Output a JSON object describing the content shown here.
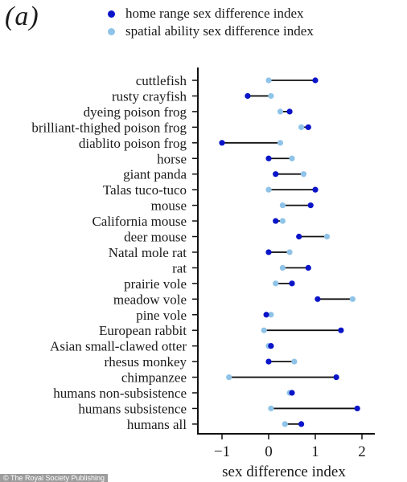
{
  "panel_label": "(a)",
  "colors": {
    "home": "#0a14c8",
    "spatial": "#8fc3e8",
    "axis": "#111111"
  },
  "legend": [
    {
      "label": "home range sex difference index",
      "color_key": "home"
    },
    {
      "label": "spatial ability sex difference index",
      "color_key": "spatial"
    }
  ],
  "chart_data": {
    "type": "dot",
    "xlabel": "sex difference index",
    "xlim": [
      -1.5,
      2.05
    ],
    "xticks": [
      -1,
      0,
      1,
      2
    ],
    "tick_labels": [
      "−1",
      "0",
      "1",
      "2"
    ],
    "grid": false,
    "legend_position": "top",
    "series": [
      {
        "name": "home range sex difference index",
        "color_key": "home"
      },
      {
        "name": "spatial ability sex difference index",
        "color_key": "spatial"
      }
    ],
    "categories": [
      {
        "label": "cuttlefish",
        "home": 1.0,
        "spatial": 0.0
      },
      {
        "label": "rusty crayfish",
        "home": -0.45,
        "spatial": 0.05
      },
      {
        "label": "dyeing poison frog",
        "home": 0.45,
        "spatial": 0.25
      },
      {
        "label": "brilliant-thighed poison frog",
        "home": 0.85,
        "spatial": 0.7
      },
      {
        "label": "diablito poison frog",
        "home": -1.0,
        "spatial": 0.25
      },
      {
        "label": "horse",
        "home": 0.0,
        "spatial": 0.5
      },
      {
        "label": "giant panda",
        "home": 0.15,
        "spatial": 0.75
      },
      {
        "label": "Talas tuco-tuco",
        "home": 1.0,
        "spatial": 0.0
      },
      {
        "label": "mouse",
        "home": 0.9,
        "spatial": 0.3
      },
      {
        "label": "California mouse",
        "home": 0.15,
        "spatial": 0.3
      },
      {
        "label": "deer mouse",
        "home": 0.65,
        "spatial": 1.25
      },
      {
        "label": "Natal mole rat",
        "home": 0.0,
        "spatial": 0.45
      },
      {
        "label": "rat",
        "home": 0.85,
        "spatial": 0.3
      },
      {
        "label": "prairie vole",
        "home": 0.5,
        "spatial": 0.15
      },
      {
        "label": "meadow vole",
        "home": 1.05,
        "spatial": 1.8
      },
      {
        "label": "pine vole",
        "home": -0.05,
        "spatial": 0.05
      },
      {
        "label": "European rabbit",
        "home": 1.55,
        "spatial": -0.1
      },
      {
        "label": "Asian small-clawed otter",
        "home": 0.05,
        "spatial": 0.0
      },
      {
        "label": "rhesus monkey",
        "home": 0.0,
        "spatial": 0.55
      },
      {
        "label": "chimpanzee",
        "home": 1.45,
        "spatial": -0.85
      },
      {
        "label": "humans non-subsistence",
        "home": 0.5,
        "spatial": 0.45
      },
      {
        "label": "humans subsistence",
        "home": 1.9,
        "spatial": 0.05
      },
      {
        "label": "humans all",
        "home": 0.7,
        "spatial": 0.35
      }
    ]
  },
  "credit": "© The Royal Society Publishing"
}
